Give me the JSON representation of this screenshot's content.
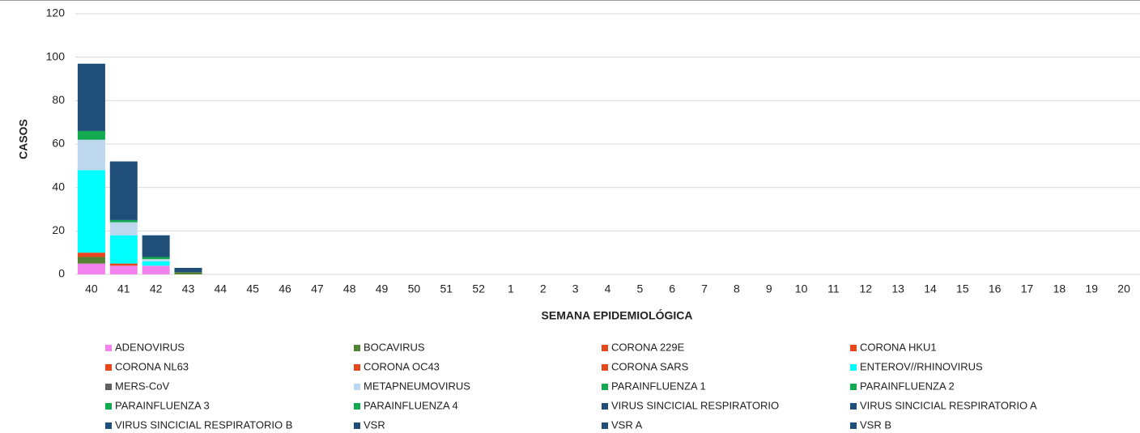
{
  "chart_data": {
    "type": "stacked_bar",
    "x_label": "SEMANA EPIDEMIOLÓGICA",
    "y_label": "CASOS",
    "categories": [
      "40",
      "41",
      "42",
      "43",
      "44",
      "45",
      "46",
      "47",
      "48",
      "49",
      "50",
      "51",
      "52",
      "1",
      "2",
      "3",
      "4",
      "5",
      "6",
      "7",
      "8",
      "9",
      "10",
      "11",
      "12",
      "13",
      "14",
      "15",
      "16",
      "17",
      "18",
      "19",
      "20"
    ],
    "ylim": [
      0,
      120
    ],
    "yticks": [
      0,
      20,
      40,
      60,
      80,
      100,
      120
    ],
    "grid": true,
    "series": [
      {
        "name": "ADENOVIRUS",
        "color": "#f283ee",
        "values": [
          5,
          4,
          4,
          0,
          0,
          0,
          0,
          0,
          0,
          0,
          0,
          0,
          0,
          0,
          0,
          0,
          0,
          0,
          0,
          0,
          0,
          0,
          0,
          0,
          0,
          0,
          0,
          0,
          0,
          0,
          0,
          0,
          0
        ]
      },
      {
        "name": "BOCAVIRUS",
        "color": "#548235",
        "values": [
          3,
          0,
          0,
          1,
          0,
          0,
          0,
          0,
          0,
          0,
          0,
          0,
          0,
          0,
          0,
          0,
          0,
          0,
          0,
          0,
          0,
          0,
          0,
          0,
          0,
          0,
          0,
          0,
          0,
          0,
          0,
          0,
          0
        ]
      },
      {
        "name": "CORONA 229E",
        "color": "#e8461b",
        "values": [
          2,
          1,
          0,
          0,
          0,
          0,
          0,
          0,
          0,
          0,
          0,
          0,
          0,
          0,
          0,
          0,
          0,
          0,
          0,
          0,
          0,
          0,
          0,
          0,
          0,
          0,
          0,
          0,
          0,
          0,
          0,
          0,
          0
        ]
      },
      {
        "name": "CORONA HKU1",
        "color": "#e8461b",
        "values": [
          0,
          0,
          0,
          0,
          0,
          0,
          0,
          0,
          0,
          0,
          0,
          0,
          0,
          0,
          0,
          0,
          0,
          0,
          0,
          0,
          0,
          0,
          0,
          0,
          0,
          0,
          0,
          0,
          0,
          0,
          0,
          0,
          0
        ]
      },
      {
        "name": "CORONA NL63",
        "color": "#e8461b",
        "values": [
          0,
          0,
          0,
          0,
          0,
          0,
          0,
          0,
          0,
          0,
          0,
          0,
          0,
          0,
          0,
          0,
          0,
          0,
          0,
          0,
          0,
          0,
          0,
          0,
          0,
          0,
          0,
          0,
          0,
          0,
          0,
          0,
          0
        ]
      },
      {
        "name": "CORONA OC43",
        "color": "#e8461b",
        "values": [
          0,
          0,
          0,
          0,
          0,
          0,
          0,
          0,
          0,
          0,
          0,
          0,
          0,
          0,
          0,
          0,
          0,
          0,
          0,
          0,
          0,
          0,
          0,
          0,
          0,
          0,
          0,
          0,
          0,
          0,
          0,
          0,
          0
        ]
      },
      {
        "name": "CORONA SARS",
        "color": "#e8461b",
        "values": [
          0,
          0,
          0,
          0,
          0,
          0,
          0,
          0,
          0,
          0,
          0,
          0,
          0,
          0,
          0,
          0,
          0,
          0,
          0,
          0,
          0,
          0,
          0,
          0,
          0,
          0,
          0,
          0,
          0,
          0,
          0,
          0,
          0
        ]
      },
      {
        "name": "ENTEROV//RHINOVIRUS",
        "color": "#00ffff",
        "values": [
          38,
          13,
          2,
          0,
          0,
          0,
          0,
          0,
          0,
          0,
          0,
          0,
          0,
          0,
          0,
          0,
          0,
          0,
          0,
          0,
          0,
          0,
          0,
          0,
          0,
          0,
          0,
          0,
          0,
          0,
          0,
          0,
          0
        ]
      },
      {
        "name": "MERS-CoV",
        "color": "#606060",
        "values": [
          0,
          0,
          0,
          0,
          0,
          0,
          0,
          0,
          0,
          0,
          0,
          0,
          0,
          0,
          0,
          0,
          0,
          0,
          0,
          0,
          0,
          0,
          0,
          0,
          0,
          0,
          0,
          0,
          0,
          0,
          0,
          0,
          0
        ]
      },
      {
        "name": "METAPNEUMOVIRUS",
        "color": "#bdd7ee",
        "values": [
          14,
          6,
          1,
          0,
          0,
          0,
          0,
          0,
          0,
          0,
          0,
          0,
          0,
          0,
          0,
          0,
          0,
          0,
          0,
          0,
          0,
          0,
          0,
          0,
          0,
          0,
          0,
          0,
          0,
          0,
          0,
          0,
          0
        ]
      },
      {
        "name": "PARAINFLUENZA 1",
        "color": "#12a94f",
        "values": [
          0,
          0,
          0,
          0,
          0,
          0,
          0,
          0,
          0,
          0,
          0,
          0,
          0,
          0,
          0,
          0,
          0,
          0,
          0,
          0,
          0,
          0,
          0,
          0,
          0,
          0,
          0,
          0,
          0,
          0,
          0,
          0,
          0
        ]
      },
      {
        "name": "PARAINFLUENZA 2",
        "color": "#12a94f",
        "values": [
          0,
          0,
          0,
          0,
          0,
          0,
          0,
          0,
          0,
          0,
          0,
          0,
          0,
          0,
          0,
          0,
          0,
          0,
          0,
          0,
          0,
          0,
          0,
          0,
          0,
          0,
          0,
          0,
          0,
          0,
          0,
          0,
          0
        ]
      },
      {
        "name": "PARAINFLUENZA 3",
        "color": "#12a94f",
        "values": [
          4,
          1,
          1,
          0,
          0,
          0,
          0,
          0,
          0,
          0,
          0,
          0,
          0,
          0,
          0,
          0,
          0,
          0,
          0,
          0,
          0,
          0,
          0,
          0,
          0,
          0,
          0,
          0,
          0,
          0,
          0,
          0,
          0
        ]
      },
      {
        "name": "PARAINFLUENZA 4",
        "color": "#12a94f",
        "values": [
          0,
          0,
          0,
          0,
          0,
          0,
          0,
          0,
          0,
          0,
          0,
          0,
          0,
          0,
          0,
          0,
          0,
          0,
          0,
          0,
          0,
          0,
          0,
          0,
          0,
          0,
          0,
          0,
          0,
          0,
          0,
          0,
          0
        ]
      },
      {
        "name": "VIRUS SINCICIAL RESPIRATORIO",
        "color": "#1f4e79",
        "values": [
          0,
          0,
          0,
          0,
          0,
          0,
          0,
          0,
          0,
          0,
          0,
          0,
          0,
          0,
          0,
          0,
          0,
          0,
          0,
          0,
          0,
          0,
          0,
          0,
          0,
          0,
          0,
          0,
          0,
          0,
          0,
          0,
          0
        ]
      },
      {
        "name": "VIRUS SINCICIAL RESPIRATORIO A",
        "color": "#1f4e79",
        "values": [
          31,
          27,
          10,
          2,
          0,
          0,
          0,
          0,
          0,
          0,
          0,
          0,
          0,
          0,
          0,
          0,
          0,
          0,
          0,
          0,
          0,
          0,
          0,
          0,
          0,
          0,
          0,
          0,
          0,
          0,
          0,
          0,
          0
        ]
      },
      {
        "name": "VIRUS SINCICIAL RESPIRATORIO B",
        "color": "#1f4e79",
        "values": [
          0,
          0,
          0,
          0,
          0,
          0,
          0,
          0,
          0,
          0,
          0,
          0,
          0,
          0,
          0,
          0,
          0,
          0,
          0,
          0,
          0,
          0,
          0,
          0,
          0,
          0,
          0,
          0,
          0,
          0,
          0,
          0,
          0
        ]
      },
      {
        "name": "VSR",
        "color": "#1f4e79",
        "values": [
          0,
          0,
          0,
          0,
          0,
          0,
          0,
          0,
          0,
          0,
          0,
          0,
          0,
          0,
          0,
          0,
          0,
          0,
          0,
          0,
          0,
          0,
          0,
          0,
          0,
          0,
          0,
          0,
          0,
          0,
          0,
          0,
          0
        ]
      },
      {
        "name": "VSR A",
        "color": "#1f4e79",
        "values": [
          0,
          0,
          0,
          0,
          0,
          0,
          0,
          0,
          0,
          0,
          0,
          0,
          0,
          0,
          0,
          0,
          0,
          0,
          0,
          0,
          0,
          0,
          0,
          0,
          0,
          0,
          0,
          0,
          0,
          0,
          0,
          0,
          0
        ]
      },
      {
        "name": "VSR B",
        "color": "#1f4e79",
        "values": [
          0,
          0,
          0,
          0,
          0,
          0,
          0,
          0,
          0,
          0,
          0,
          0,
          0,
          0,
          0,
          0,
          0,
          0,
          0,
          0,
          0,
          0,
          0,
          0,
          0,
          0,
          0,
          0,
          0,
          0,
          0,
          0,
          0
        ]
      }
    ]
  }
}
